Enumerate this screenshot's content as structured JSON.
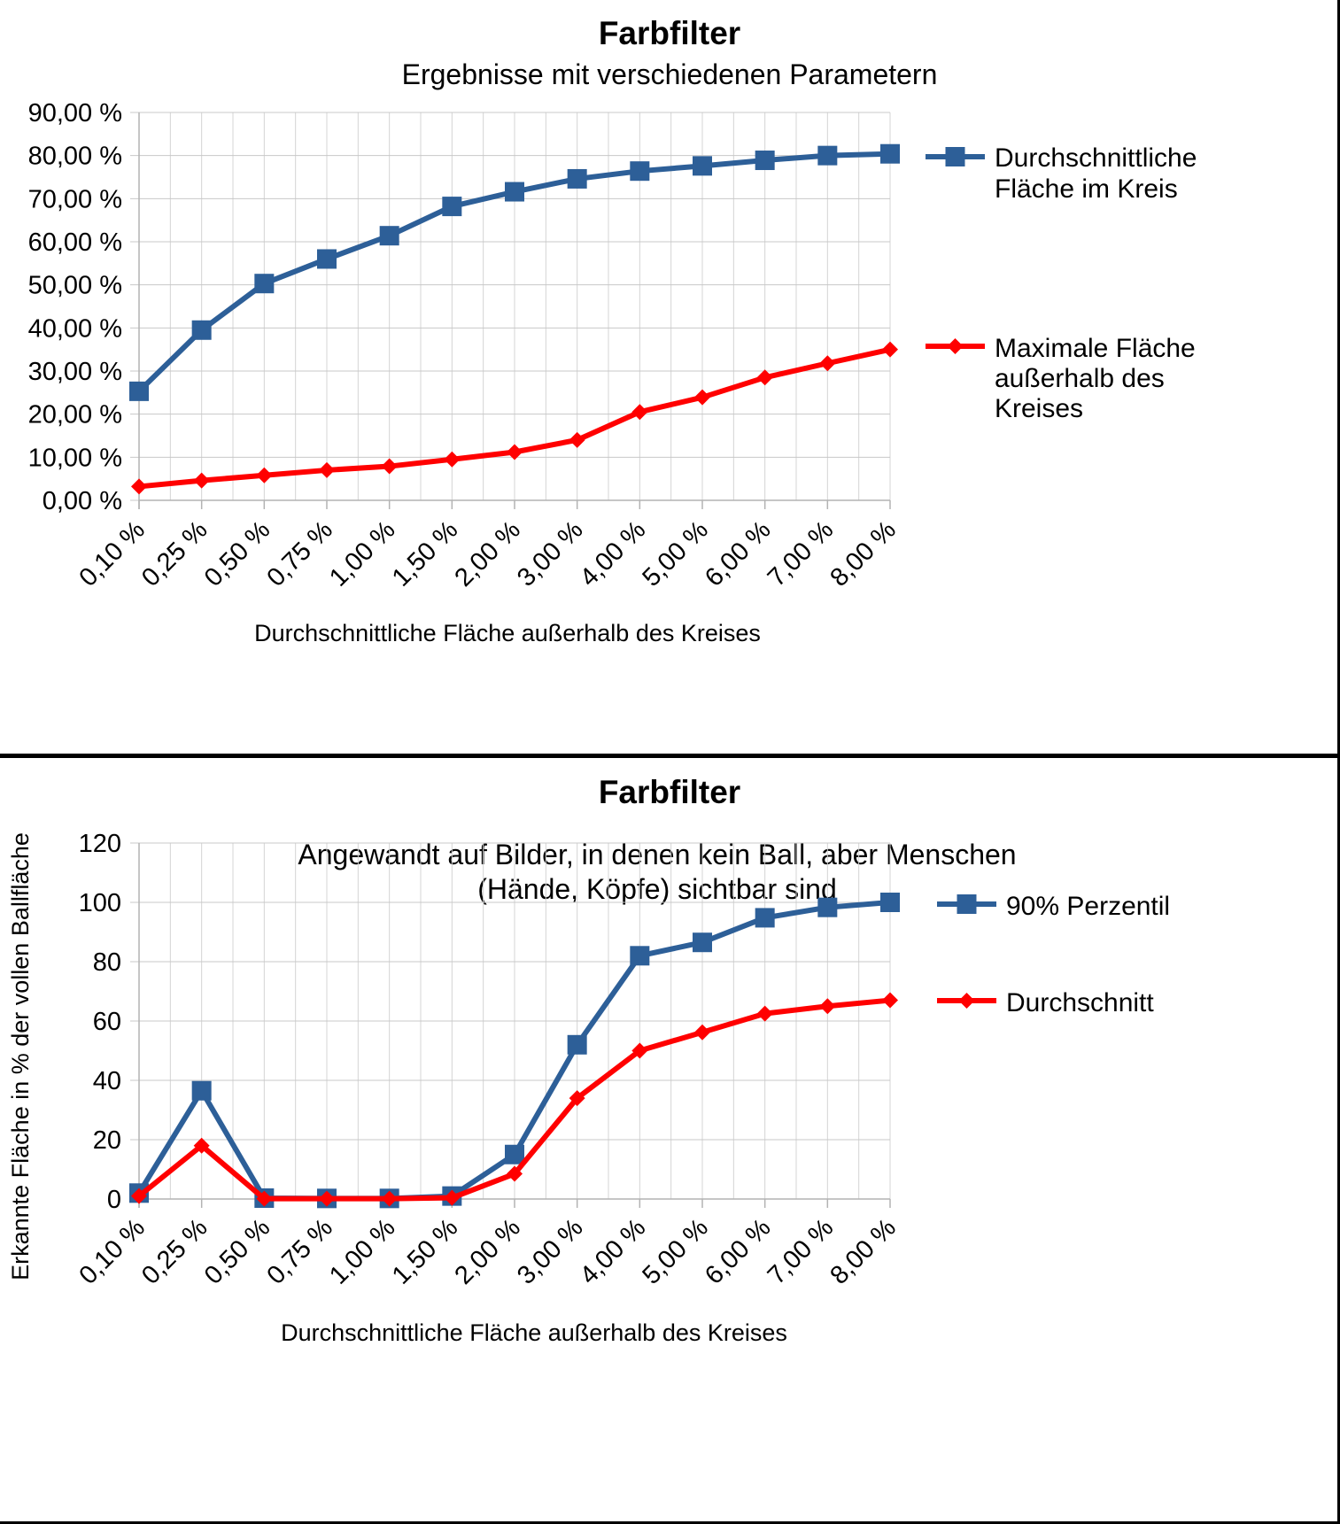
{
  "chart_data": [
    {
      "type": "line",
      "title": "Farbfilter",
      "subtitle": "Ergebnisse mit verschiedenen Parametern",
      "xlabel": "Durchschnittliche Fläche außerhalb des Kreises",
      "ylabel": "",
      "categories": [
        "0,10 %",
        "0,25 %",
        "0,50 %",
        "0,75 %",
        "1,00 %",
        "1,50 %",
        "2,00 %",
        "3,00 %",
        "4,00 %",
        "5,00 %",
        "6,00 %",
        "7,00 %",
        "8,00 %"
      ],
      "ylim": [
        0,
        90
      ],
      "yticks": [
        0,
        10,
        20,
        30,
        40,
        50,
        60,
        70,
        80,
        90
      ],
      "ytick_labels": [
        "0,00 %",
        "10,00 %",
        "20,00 %",
        "30,00 %",
        "40,00 %",
        "50,00 %",
        "60,00 %",
        "70,00 %",
        "80,00 %",
        "90,00 %"
      ],
      "grid": true,
      "legend_position": "right",
      "series": [
        {
          "name": "Durchschnittliche Fläche im Kreis",
          "legend_lines": [
            "Durchschnittliche",
            "Fläche im Kreis"
          ],
          "color": "#2d5f98",
          "marker": "square",
          "values": [
            25.3,
            39.5,
            50.3,
            56.0,
            61.4,
            68.2,
            71.6,
            74.6,
            76.4,
            77.6,
            78.9,
            80.0,
            80.4
          ]
        },
        {
          "name": "Maximale Fläche außerhalb des Kreises",
          "legend_lines": [
            "Maximale Fläche",
            "außerhalb des",
            "Kreises"
          ],
          "color": "#ff0000",
          "marker": "diamond",
          "values": [
            3.2,
            4.6,
            5.8,
            7.0,
            7.9,
            9.5,
            11.2,
            14.0,
            20.5,
            23.9,
            28.5,
            31.8,
            35.0
          ]
        }
      ]
    },
    {
      "type": "line",
      "title": "Farbfilter",
      "subtitle_lines": [
        "Angewandt auf Bilder, in denen kein Ball, aber Menschen",
        "(Hände, Köpfe) sichtbar sind"
      ],
      "xlabel": "Durchschnittliche Fläche außerhalb des Kreises",
      "ylabel": "Erkannte Fläche in % der vollen Ballfläche",
      "categories": [
        "0,10 %",
        "0,25 %",
        "0,50 %",
        "0,75 %",
        "1,00 %",
        "1,50 %",
        "2,00 %",
        "3,00 %",
        "4,00 %",
        "5,00 %",
        "6,00 %",
        "7,00 %",
        "8,00 %"
      ],
      "ylim": [
        0,
        120
      ],
      "yticks": [
        0,
        20,
        40,
        60,
        80,
        100,
        120
      ],
      "ytick_labels": [
        "0",
        "20",
        "40",
        "60",
        "80",
        "100",
        "120"
      ],
      "grid": true,
      "legend_position": "right",
      "series": [
        {
          "name": "90% Perzentil",
          "legend_lines": [
            "90% Perzentil"
          ],
          "color": "#2d5f98",
          "marker": "square",
          "values": [
            2.0,
            36.5,
            0.3,
            0.2,
            0.2,
            1.0,
            15.0,
            52.0,
            82.0,
            86.5,
            94.8,
            98.3,
            100.0
          ]
        },
        {
          "name": "Durchschnitt",
          "legend_lines": [
            "Durchschnitt"
          ],
          "color": "#ff0000",
          "marker": "diamond",
          "values": [
            1.0,
            18.0,
            0.1,
            0.1,
            0.1,
            0.4,
            8.5,
            34.0,
            50.0,
            56.2,
            62.5,
            65.0,
            67.0
          ]
        }
      ]
    }
  ]
}
